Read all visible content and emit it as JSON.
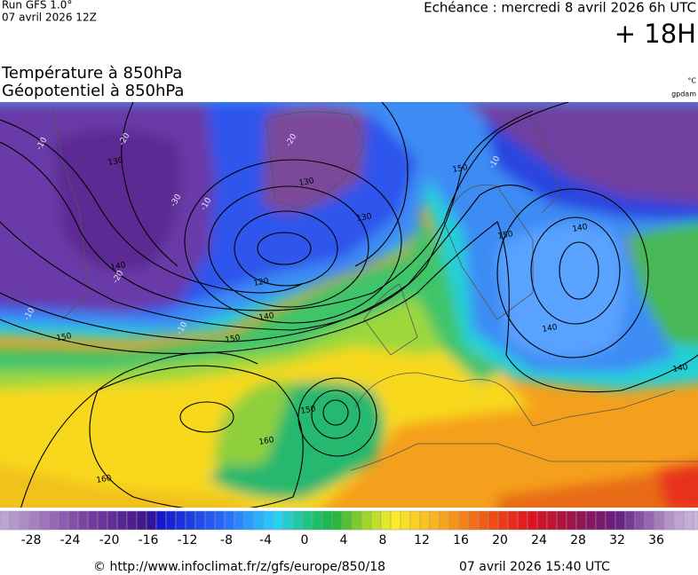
{
  "header": {
    "run": "Run GFS 1.0°",
    "run_date": "07 avril 2026 12Z",
    "forecast": "Echéance : mercredi 8 avril 2026 6h UTC",
    "lead": "+ 18H"
  },
  "titles": [
    "Température à 850hPa",
    "Géopotentiel à 850hPa"
  ],
  "units": [
    "°C",
    "gpdam"
  ],
  "map": {
    "contour_labels": [
      -10,
      -20,
      130,
      -30,
      -10,
      140,
      -20,
      -10,
      150,
      -10,
      150,
      120,
      140,
      130,
      -20,
      130,
      150,
      -10,
      150,
      140,
      140,
      140,
      150,
      160,
      160
    ]
  },
  "colorbar": {
    "ticks": [
      -28,
      -24,
      -20,
      -16,
      -12,
      -8,
      -4,
      0,
      4,
      8,
      12,
      16,
      20,
      24,
      28,
      32,
      36
    ]
  },
  "footer": {
    "source": "© http://www.infoclimat.fr/z/gfs/europe/850/18",
    "generated": "07 avril 2026 15:40 UTC"
  }
}
